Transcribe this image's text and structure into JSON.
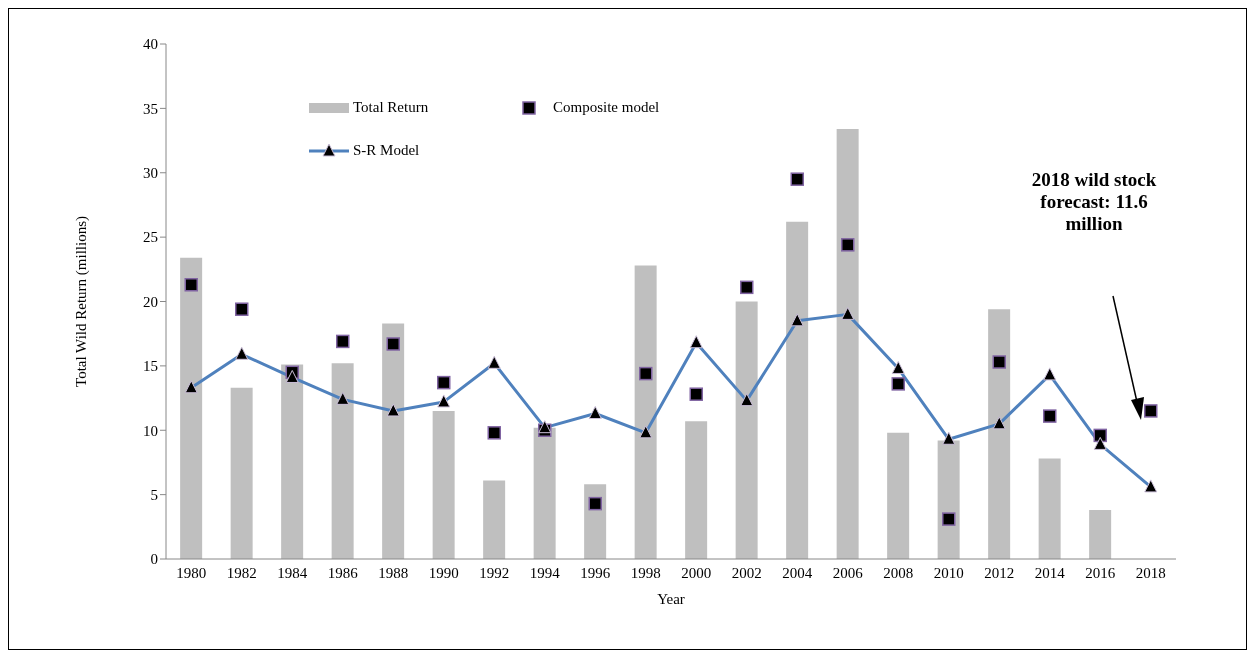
{
  "chart_data": {
    "type": "bar",
    "xlabel": "Year",
    "ylabel": "Total Wild Return (millions)",
    "categories": [
      "1980",
      "1982",
      "1984",
      "1986",
      "1988",
      "1990",
      "1992",
      "1994",
      "1996",
      "1998",
      "2000",
      "2002",
      "2004",
      "2006",
      "2008",
      "2010",
      "2012",
      "2014",
      "2016",
      "2018"
    ],
    "series": [
      {
        "name": "Total Return",
        "color": "#bfbfbf",
        "values": [
          23.4,
          13.3,
          15.1,
          15.2,
          18.3,
          11.5,
          6.1,
          10.2,
          5.8,
          22.8,
          10.7,
          20.0,
          26.2,
          33.4,
          9.8,
          9.2,
          19.4,
          7.8,
          3.8,
          null
        ]
      },
      {
        "name": "Composite model",
        "type": "scatter",
        "marker": "square",
        "color": "#000000",
        "values": [
          21.3,
          19.4,
          14.5,
          16.9,
          16.7,
          13.7,
          9.8,
          10.0,
          4.3,
          14.4,
          12.8,
          21.1,
          29.5,
          24.4,
          13.6,
          3.1,
          15.3,
          11.1,
          9.6,
          11.5
        ]
      },
      {
        "name": "S-R Model",
        "type": "line",
        "marker": "triangle",
        "color": "#4f81bd",
        "values": [
          13.3,
          15.9,
          14.1,
          12.4,
          11.5,
          12.2,
          15.2,
          10.2,
          11.3,
          9.8,
          16.8,
          12.3,
          18.5,
          19.0,
          14.8,
          9.3,
          10.5,
          14.3,
          8.9,
          5.6
        ]
      }
    ],
    "ylim": [
      0,
      40
    ],
    "yticks": [
      0,
      5,
      10,
      15,
      20,
      25,
      30,
      35,
      40
    ],
    "grid": false,
    "legend": "top",
    "annotations": [
      "2018 wild stock forecast: 11.6 million"
    ]
  }
}
